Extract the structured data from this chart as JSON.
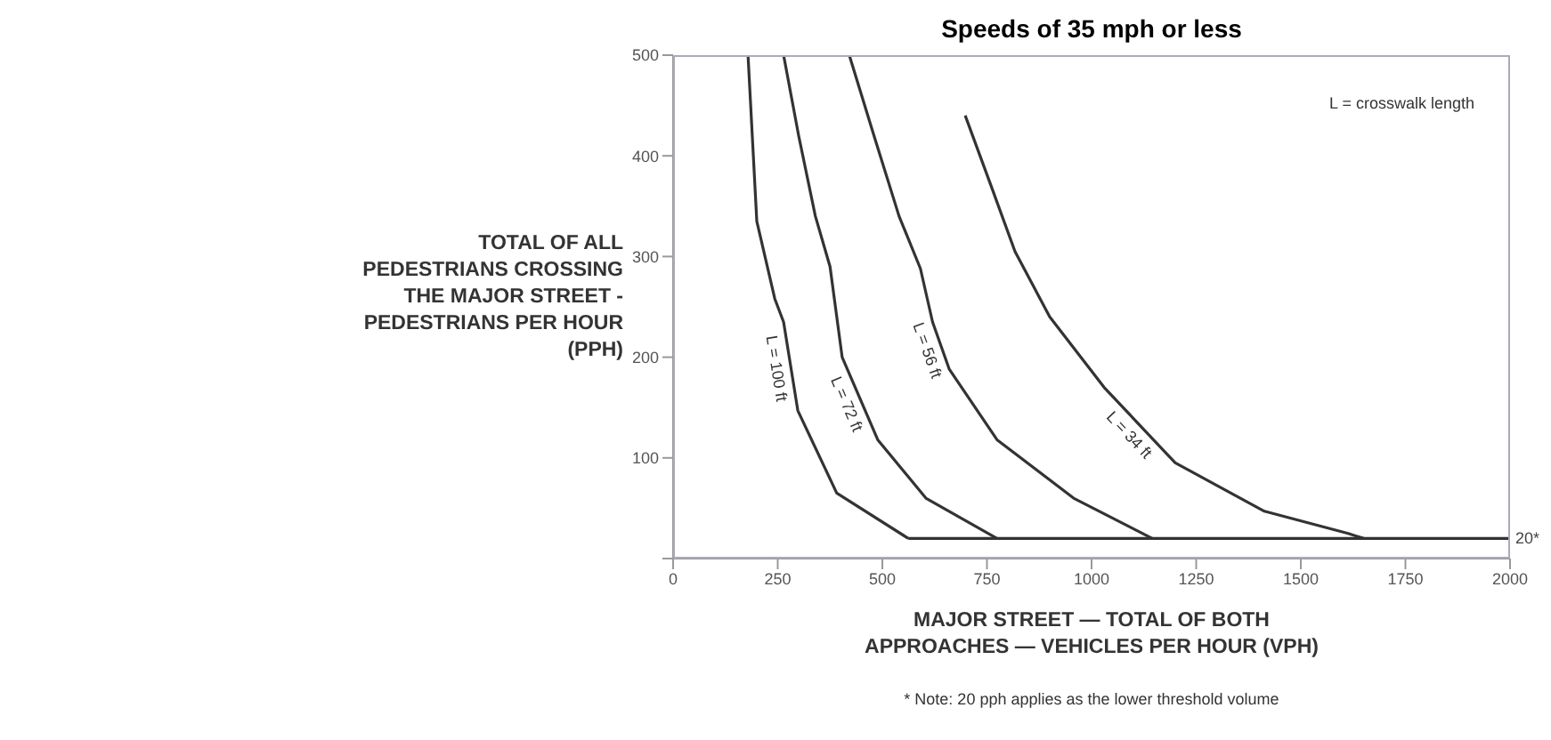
{
  "chart_data": {
    "type": "line",
    "title": "Speeds of 35 mph or less",
    "xlabel": "MAJOR STREET — TOTAL OF BOTH APPROACHES — VEHICLES PER HOUR (VPH)",
    "ylabel": "TOTAL OF ALL PEDESTRIANS CROSSING THE MAJOR STREET - PEDESTRIANS PER HOUR (PPH)",
    "annotations": [
      "L = crosswalk length",
      "* Note: 20 pph applies as the lower threshold volume"
    ],
    "xlim": [
      0,
      2000
    ],
    "xticks": [
      0,
      250,
      500,
      750,
      1000,
      1250,
      1500,
      1750,
      2000
    ],
    "ylim": [
      0,
      500
    ],
    "yticks": [
      {
        "value": 0,
        "label": null
      },
      100,
      200,
      300,
      400,
      500
    ],
    "line_style": "solid",
    "series": [
      {
        "name": "L = 100 ft",
        "color": "#333333",
        "x": [
          179,
          200,
          243,
          264,
          298,
          391,
          562
        ],
        "values": [
          500,
          335,
          258,
          235,
          147,
          65,
          20
        ]
      },
      {
        "name": "L = 72 ft",
        "color": "#333333",
        "x": [
          264,
          300,
          340,
          375,
          404,
          489,
          604,
          774
        ],
        "values": [
          500,
          420,
          340,
          290,
          200,
          118,
          60,
          20
        ]
      },
      {
        "name": "L = 56 ft",
        "color": "#333333",
        "x": [
          421,
          480,
          540,
          591,
          620,
          660,
          774,
          957,
          1145
        ],
        "values": [
          500,
          420,
          340,
          288,
          235,
          188,
          118,
          60,
          20
        ]
      },
      {
        "name": "L = 34 ft",
        "color": "#333333",
        "x": [
          698,
          760,
          817,
          900,
          1030,
          1200,
          1413,
          1613,
          1650
        ],
        "values": [
          440,
          370,
          305,
          240,
          170,
          95,
          47,
          25,
          20
        ]
      },
      {
        "name": "20*",
        "color": "#333333",
        "x": [
          562,
          2000
        ],
        "values": [
          20,
          20
        ]
      }
    ]
  }
}
